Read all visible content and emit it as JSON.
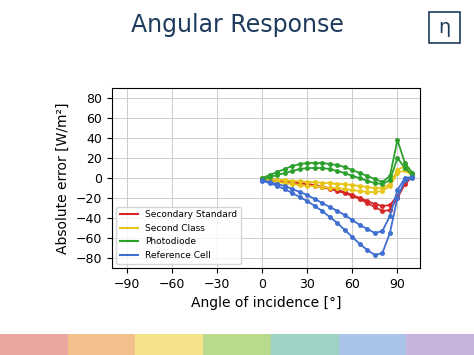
{
  "chart_data": {
    "type": "line",
    "title": "Angular Response",
    "annotations": [
      "η"
    ],
    "x_label": "Angle of incidence [°]",
    "y_label": "Absolute error [W/m²]",
    "x": [
      0,
      5,
      10,
      15,
      20,
      25,
      30,
      35,
      40,
      45,
      50,
      55,
      60,
      65,
      70,
      75,
      80,
      85,
      90,
      95,
      100
    ],
    "series": [
      {
        "name": "Secondary Standard",
        "color": "#d62728",
        "marker": "o",
        "line_style": "solid",
        "values": [
          [
            0,
            -1,
            -2,
            -3,
            -4,
            -5,
            -6,
            -8,
            -9,
            -11,
            -13,
            -15,
            -18,
            -21,
            -25,
            -29,
            -33,
            -32,
            -20,
            -6,
            2
          ],
          [
            -2,
            -2,
            -3,
            -3,
            -4,
            -5,
            -6,
            -7,
            -9,
            -10,
            -12,
            -14,
            -17,
            -20,
            -23,
            -26,
            -28,
            -27,
            -18,
            -5,
            1
          ]
        ]
      },
      {
        "name": "Second Class",
        "color": "#e6c619",
        "marker": "o",
        "line_style": "solid",
        "values": [
          [
            0,
            -1,
            -2,
            -2,
            -3,
            -3,
            -4,
            -4,
            -5,
            -5,
            -6,
            -6,
            -7,
            -8,
            -9,
            -10,
            -10,
            -6,
            8,
            12,
            3
          ],
          [
            -1,
            -3,
            -4,
            -5,
            -6,
            -7,
            -8,
            -8,
            -9,
            -10,
            -10,
            -11,
            -12,
            -13,
            -14,
            -14,
            -13,
            -8,
            5,
            8,
            2
          ]
        ]
      },
      {
        "name": "Photodiode",
        "color": "#2ca02c",
        "marker": "o",
        "line_style": "solid",
        "values": [
          [
            0,
            3,
            6,
            9,
            12,
            14,
            15,
            15,
            15,
            14,
            13,
            11,
            8,
            5,
            2,
            -1,
            -4,
            2,
            38,
            15,
            5
          ],
          [
            -2,
            1,
            3,
            5,
            7,
            9,
            10,
            10,
            10,
            9,
            7,
            5,
            2,
            0,
            -3,
            -5,
            -6,
            -2,
            20,
            10,
            3
          ]
        ]
      },
      {
        "name": "Reference Cell",
        "color": "#3f6fd1",
        "marker": "o",
        "line_style": "solid",
        "values": [
          [
            -3,
            -5,
            -8,
            -11,
            -15,
            -19,
            -23,
            -28,
            -33,
            -39,
            -45,
            -52,
            -59,
            -66,
            -72,
            -77,
            -75,
            -55,
            -20,
            -2,
            0
          ],
          [
            -2,
            -4,
            -6,
            -8,
            -11,
            -14,
            -17,
            -21,
            -25,
            -29,
            -33,
            -37,
            -42,
            -47,
            -51,
            -55,
            -53,
            -38,
            -12,
            0,
            1
          ]
        ]
      }
    ],
    "xlim": [
      -100,
      105
    ],
    "xticks": [
      {
        "value": -90,
        "label": "−90"
      },
      {
        "value": -60,
        "label": "−60"
      },
      {
        "value": -30,
        "label": "−30"
      },
      0,
      30,
      60,
      90
    ],
    "ylim": [
      -90,
      90
    ],
    "yticks": [
      {
        "value": -80,
        "label": "−80"
      },
      {
        "value": -60,
        "label": "−60"
      },
      {
        "value": -40,
        "label": "−40"
      },
      {
        "value": -20,
        "label": "−20"
      },
      0,
      20,
      40,
      60,
      80
    ],
    "grid": true,
    "legend": "lower left"
  }
}
